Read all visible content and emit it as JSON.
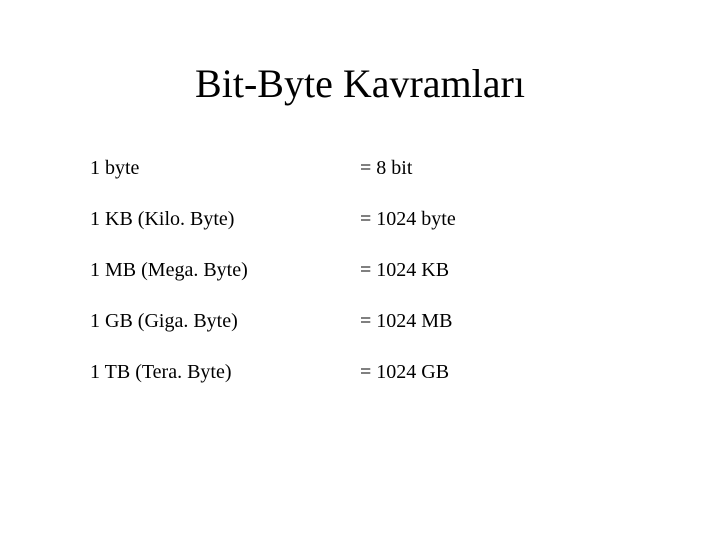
{
  "title": "Bit-Byte Kavramları",
  "table": {
    "type": "table",
    "columns": [
      "unit",
      "value"
    ],
    "column_widths": [
      "50%",
      "50%"
    ],
    "rows": [
      {
        "unit": "1 byte",
        "value": "= 8 bit"
      },
      {
        "unit": "1 KB (Kilo. Byte)",
        "value": "= 1024 byte"
      },
      {
        "unit": "1 MB (Mega. Byte)",
        "value": "= 1024 KB"
      },
      {
        "unit": "1 GB (Giga. Byte)",
        "value": "= 1024 MB"
      },
      {
        "unit": "1 TB (Tera. Byte)",
        "value": "= 1024 GB"
      }
    ],
    "font_family": "Times New Roman",
    "title_fontsize": 40,
    "cell_fontsize": 20,
    "text_color": "#000000",
    "background_color": "#ffffff"
  }
}
